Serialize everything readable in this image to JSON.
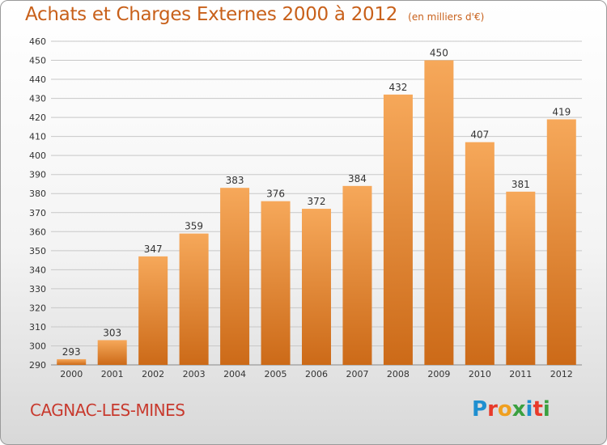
{
  "header": {
    "title": "Achats et Charges Externes 2000 à 2012",
    "unit": "(en milliers d'€)"
  },
  "footer": {
    "commune": "CAGNAC-LES-MINES",
    "logo": [
      "P",
      "r",
      "o",
      "x",
      "i",
      "t",
      "i"
    ],
    "logo_colors": [
      "#1f8fd0",
      "#e83a2a",
      "#f0a020",
      "#3aa040",
      "#1f8fd0",
      "#e83a2a",
      "#3aa040"
    ]
  },
  "colors": {
    "bar_top": "#f6a85a",
    "bar_bottom": "#cc6a18",
    "grid": "#c8c8c8",
    "title": "#c8601a",
    "commune": "#c83a2e"
  },
  "chart_data": {
    "type": "bar",
    "categories": [
      "2000",
      "2001",
      "2002",
      "2003",
      "2004",
      "2005",
      "2006",
      "2007",
      "2008",
      "2009",
      "2010",
      "2011",
      "2012"
    ],
    "values": [
      293,
      303,
      347,
      359,
      383,
      376,
      372,
      384,
      432,
      450,
      407,
      381,
      419
    ],
    "ylim": [
      290,
      460
    ],
    "yticks": [
      290,
      300,
      310,
      320,
      330,
      340,
      350,
      360,
      370,
      380,
      390,
      400,
      410,
      420,
      430,
      440,
      450,
      460
    ],
    "grid": true
  }
}
